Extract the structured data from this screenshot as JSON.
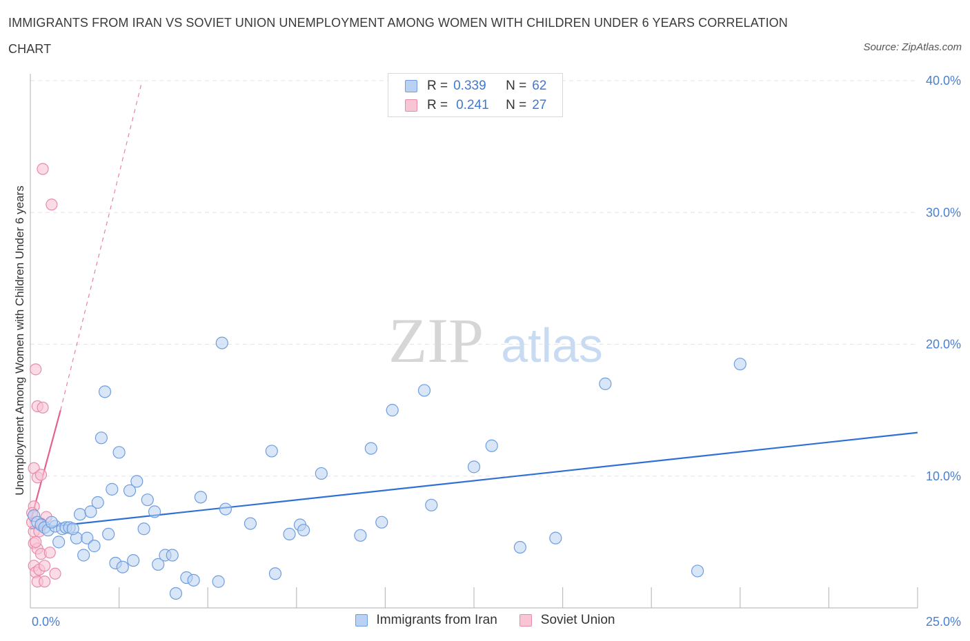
{
  "header": {
    "title": "IMMIGRANTS FROM IRAN VS SOVIET UNION UNEMPLOYMENT AMONG WOMEN WITH CHILDREN UNDER 6 YEARS CORRELATION CHART",
    "source": "Source: ZipAtlas.com"
  },
  "watermark": {
    "zip": "ZIP",
    "atlas": "atlas"
  },
  "legend": {
    "r_label": "R =",
    "n_label": "N =",
    "iran": {
      "r": "0.339",
      "n": "62",
      "label": "Immigrants from Iran"
    },
    "soviet": {
      "r": "0.241",
      "n": "27",
      "label": "Soviet Union"
    }
  },
  "colors": {
    "iran_fill": "#b9d2f3",
    "iran_stroke": "#6d9de0",
    "iran_line": "#2f6fd6",
    "soviet_fill": "#f8c5d5",
    "soviet_stroke": "#e98aa8",
    "soviet_line": "#e2628c",
    "grid": "#e4e4e4",
    "axis": "#bdbdbd",
    "tick_text": "#4a7fd0"
  },
  "chart_data": {
    "type": "scatter",
    "title": "IMMIGRANTS FROM IRAN VS SOVIET UNION UNEMPLOYMENT AMONG WOMEN WITH CHILDREN UNDER 6 YEARS CORRELATION CHART",
    "xlabel": "",
    "ylabel": "Unemployment Among Women with Children Under 6 years",
    "xlim": [
      0,
      25
    ],
    "ylim": [
      0,
      40
    ],
    "x_tick_labels": [
      "0.0%",
      "25.0%"
    ],
    "y_ticks": [
      10,
      20,
      30,
      40
    ],
    "y_tick_labels": [
      "10.0%",
      "20.0%",
      "30.0%",
      "40.0%"
    ],
    "x_minor_ticks": [
      2.5,
      5,
      7.5,
      10,
      12.5,
      15,
      17.5,
      20,
      22.5,
      25
    ],
    "grid": true,
    "legend_position": "top-center",
    "series": [
      {
        "name": "Immigrants from Iran",
        "points": [
          [
            0.1,
            7.0
          ],
          [
            0.2,
            6.5
          ],
          [
            0.3,
            6.3
          ],
          [
            0.4,
            6.1
          ],
          [
            0.5,
            5.9
          ],
          [
            0.7,
            6.2
          ],
          [
            0.8,
            5.0
          ],
          [
            0.9,
            6.0
          ],
          [
            1.0,
            6.1
          ],
          [
            1.1,
            6.1
          ],
          [
            1.3,
            5.3
          ],
          [
            1.4,
            7.1
          ],
          [
            1.5,
            4.0
          ],
          [
            1.6,
            5.3
          ],
          [
            1.7,
            7.3
          ],
          [
            1.8,
            4.7
          ],
          [
            1.9,
            8.0
          ],
          [
            2.0,
            12.9
          ],
          [
            2.1,
            16.4
          ],
          [
            2.2,
            5.6
          ],
          [
            2.3,
            9.0
          ],
          [
            2.4,
            3.4
          ],
          [
            2.5,
            11.8
          ],
          [
            2.6,
            3.1
          ],
          [
            2.8,
            8.9
          ],
          [
            2.9,
            3.6
          ],
          [
            3.0,
            9.6
          ],
          [
            3.2,
            6.0
          ],
          [
            3.3,
            8.2
          ],
          [
            3.5,
            7.3
          ],
          [
            3.6,
            3.3
          ],
          [
            3.8,
            4.0
          ],
          [
            4.0,
            4.0
          ],
          [
            4.1,
            1.1
          ],
          [
            4.4,
            2.3
          ],
          [
            4.6,
            2.1
          ],
          [
            4.8,
            8.4
          ],
          [
            5.3,
            2.0
          ],
          [
            5.4,
            20.1
          ],
          [
            5.5,
            7.5
          ],
          [
            6.2,
            6.4
          ],
          [
            6.8,
            11.9
          ],
          [
            6.9,
            2.6
          ],
          [
            7.3,
            5.6
          ],
          [
            7.6,
            6.3
          ],
          [
            7.7,
            5.9
          ],
          [
            8.2,
            10.2
          ],
          [
            9.3,
            5.5
          ],
          [
            9.6,
            12.1
          ],
          [
            9.9,
            6.5
          ],
          [
            10.2,
            15.0
          ],
          [
            11.1,
            16.5
          ],
          [
            11.3,
            7.8
          ],
          [
            12.5,
            10.7
          ],
          [
            13.0,
            12.3
          ],
          [
            13.8,
            4.6
          ],
          [
            14.8,
            5.3
          ],
          [
            16.2,
            17.0
          ],
          [
            18.8,
            2.8
          ],
          [
            20.0,
            18.5
          ],
          [
            0.6,
            6.5
          ],
          [
            1.2,
            6.0
          ]
        ],
        "trend": {
          "from": [
            0,
            6.0
          ],
          "to": [
            25,
            13.3
          ]
        }
      },
      {
        "name": "Soviet Union",
        "points": [
          [
            0.05,
            6.5
          ],
          [
            0.1,
            5.8
          ],
          [
            0.1,
            4.9
          ],
          [
            0.1,
            3.2
          ],
          [
            0.1,
            10.6
          ],
          [
            0.1,
            7.7
          ],
          [
            0.15,
            18.1
          ],
          [
            0.15,
            2.7
          ],
          [
            0.2,
            15.3
          ],
          [
            0.2,
            9.9
          ],
          [
            0.2,
            4.5
          ],
          [
            0.2,
            2.0
          ],
          [
            0.25,
            5.8
          ],
          [
            0.25,
            2.9
          ],
          [
            0.3,
            10.1
          ],
          [
            0.3,
            4.1
          ],
          [
            0.35,
            15.2
          ],
          [
            0.35,
            33.3
          ],
          [
            0.4,
            3.2
          ],
          [
            0.4,
            2.0
          ],
          [
            0.45,
            6.9
          ],
          [
            0.55,
            4.2
          ],
          [
            0.6,
            30.6
          ],
          [
            0.7,
            2.6
          ],
          [
            0.05,
            7.2
          ],
          [
            0.15,
            5.0
          ],
          [
            0.3,
            6.4
          ]
        ],
        "trend_solid": {
          "from": [
            0,
            6.5
          ],
          "to": [
            0.85,
            15.0
          ]
        },
        "trend_dashed": {
          "from": [
            0.85,
            15.0
          ],
          "to": [
            3.15,
            40.0
          ]
        }
      }
    ]
  }
}
